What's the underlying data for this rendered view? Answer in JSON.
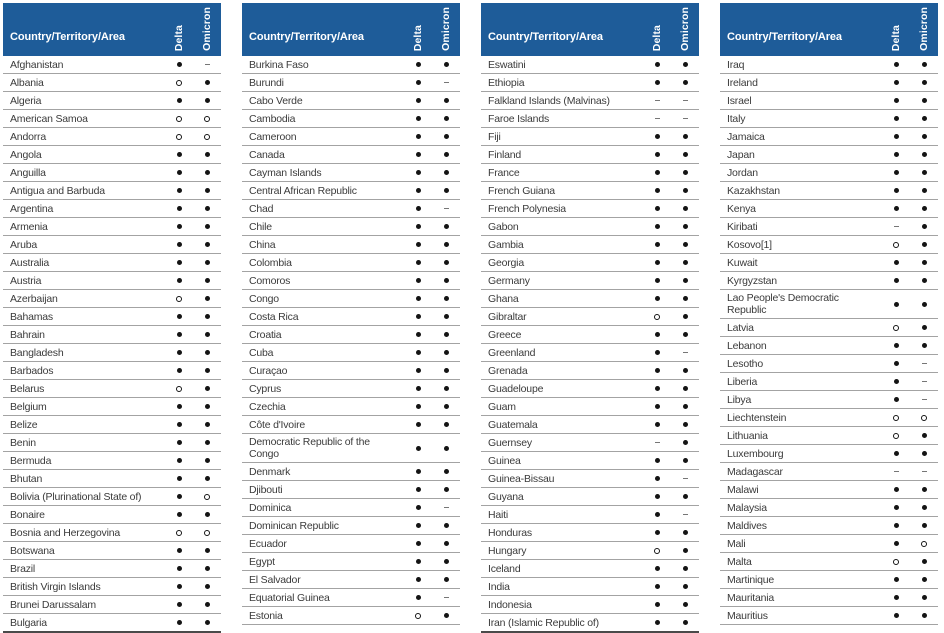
{
  "header": {
    "country_label": "Country/Territory/Area",
    "delta_label": "Delta",
    "omicron_label": "Omicron"
  },
  "colors": {
    "header_bg": "#1e5c99",
    "header_text": "#ffffff",
    "row_divider": "#a3a3a3",
    "body_text": "#3b3b3b",
    "marker": "#141414"
  },
  "marker_legend": {
    "filled": "●",
    "open": "○",
    "dash": "-"
  },
  "tables": [
    {
      "rows": [
        {
          "name": "Afghanistan",
          "delta": "filled",
          "omicron": "dash"
        },
        {
          "name": "Albania",
          "delta": "open",
          "omicron": "filled"
        },
        {
          "name": "Algeria",
          "delta": "filled",
          "omicron": "filled"
        },
        {
          "name": "American Samoa",
          "delta": "open",
          "omicron": "open"
        },
        {
          "name": "Andorra",
          "delta": "open",
          "omicron": "open"
        },
        {
          "name": "Angola",
          "delta": "filled",
          "omicron": "filled"
        },
        {
          "name": "Anguilla",
          "delta": "filled",
          "omicron": "filled"
        },
        {
          "name": "Antigua and Barbuda",
          "delta": "filled",
          "omicron": "filled"
        },
        {
          "name": "Argentina",
          "delta": "filled",
          "omicron": "filled"
        },
        {
          "name": "Armenia",
          "delta": "filled",
          "omicron": "filled"
        },
        {
          "name": "Aruba",
          "delta": "filled",
          "omicron": "filled"
        },
        {
          "name": "Australia",
          "delta": "filled",
          "omicron": "filled"
        },
        {
          "name": "Austria",
          "delta": "filled",
          "omicron": "filled"
        },
        {
          "name": "Azerbaijan",
          "delta": "open",
          "omicron": "filled"
        },
        {
          "name": "Bahamas",
          "delta": "filled",
          "omicron": "filled"
        },
        {
          "name": "Bahrain",
          "delta": "filled",
          "omicron": "filled"
        },
        {
          "name": "Bangladesh",
          "delta": "filled",
          "omicron": "filled"
        },
        {
          "name": "Barbados",
          "delta": "filled",
          "omicron": "filled"
        },
        {
          "name": "Belarus",
          "delta": "open",
          "omicron": "filled"
        },
        {
          "name": "Belgium",
          "delta": "filled",
          "omicron": "filled"
        },
        {
          "name": "Belize",
          "delta": "filled",
          "omicron": "filled"
        },
        {
          "name": "Benin",
          "delta": "filled",
          "omicron": "filled"
        },
        {
          "name": "Bermuda",
          "delta": "filled",
          "omicron": "filled"
        },
        {
          "name": "Bhutan",
          "delta": "filled",
          "omicron": "filled"
        },
        {
          "name": "Bolivia (Plurinational State of)",
          "delta": "filled",
          "omicron": "open"
        },
        {
          "name": "Bonaire",
          "delta": "filled",
          "omicron": "filled"
        },
        {
          "name": "Bosnia and Herzegovina",
          "delta": "open",
          "omicron": "open"
        },
        {
          "name": "Botswana",
          "delta": "filled",
          "omicron": "filled"
        },
        {
          "name": "Brazil",
          "delta": "filled",
          "omicron": "filled"
        },
        {
          "name": "British Virgin Islands",
          "delta": "filled",
          "omicron": "filled"
        },
        {
          "name": "Brunei Darussalam",
          "delta": "filled",
          "omicron": "filled"
        },
        {
          "name": "Bulgaria",
          "delta": "filled",
          "omicron": "filled"
        }
      ]
    },
    {
      "rows": [
        {
          "name": "Burkina Faso",
          "delta": "filled",
          "omicron": "filled"
        },
        {
          "name": "Burundi",
          "delta": "filled",
          "omicron": "dash"
        },
        {
          "name": "Cabo Verde",
          "delta": "filled",
          "omicron": "filled"
        },
        {
          "name": "Cambodia",
          "delta": "filled",
          "omicron": "filled"
        },
        {
          "name": "Cameroon",
          "delta": "filled",
          "omicron": "filled"
        },
        {
          "name": "Canada",
          "delta": "filled",
          "omicron": "filled"
        },
        {
          "name": "Cayman Islands",
          "delta": "filled",
          "omicron": "filled"
        },
        {
          "name": "Central African Republic",
          "delta": "filled",
          "omicron": "filled"
        },
        {
          "name": "Chad",
          "delta": "filled",
          "omicron": "dash"
        },
        {
          "name": "Chile",
          "delta": "filled",
          "omicron": "filled"
        },
        {
          "name": "China",
          "delta": "filled",
          "omicron": "filled"
        },
        {
          "name": "Colombia",
          "delta": "filled",
          "omicron": "filled"
        },
        {
          "name": "Comoros",
          "delta": "filled",
          "omicron": "filled"
        },
        {
          "name": "Congo",
          "delta": "filled",
          "omicron": "filled"
        },
        {
          "name": "Costa Rica",
          "delta": "filled",
          "omicron": "filled"
        },
        {
          "name": "Croatia",
          "delta": "filled",
          "omicron": "filled"
        },
        {
          "name": "Cuba",
          "delta": "filled",
          "omicron": "filled"
        },
        {
          "name": "Curaçao",
          "delta": "filled",
          "omicron": "filled"
        },
        {
          "name": "Cyprus",
          "delta": "filled",
          "omicron": "filled"
        },
        {
          "name": "Czechia",
          "delta": "filled",
          "omicron": "filled"
        },
        {
          "name": "Côte d'Ivoire",
          "delta": "filled",
          "omicron": "filled"
        },
        {
          "name": "Democratic Republic of the\nCongo",
          "delta": "filled",
          "omicron": "filled"
        },
        {
          "name": "Denmark",
          "delta": "filled",
          "omicron": "filled"
        },
        {
          "name": "Djibouti",
          "delta": "filled",
          "omicron": "filled"
        },
        {
          "name": "Dominica",
          "delta": "filled",
          "omicron": "dash"
        },
        {
          "name": "Dominican Republic",
          "delta": "filled",
          "omicron": "filled"
        },
        {
          "name": "Ecuador",
          "delta": "filled",
          "omicron": "filled"
        },
        {
          "name": "Egypt",
          "delta": "filled",
          "omicron": "filled"
        },
        {
          "name": "El Salvador",
          "delta": "filled",
          "omicron": "filled"
        },
        {
          "name": "Equatorial Guinea",
          "delta": "filled",
          "omicron": "dash"
        },
        {
          "name": "Estonia",
          "delta": "open",
          "omicron": "filled"
        }
      ]
    },
    {
      "rows": [
        {
          "name": "Eswatini",
          "delta": "filled",
          "omicron": "filled"
        },
        {
          "name": "Ethiopia",
          "delta": "filled",
          "omicron": "filled"
        },
        {
          "name": "Falkland Islands (Malvinas)",
          "delta": "dash",
          "omicron": "dash"
        },
        {
          "name": "Faroe Islands",
          "delta": "dash",
          "omicron": "dash"
        },
        {
          "name": "Fiji",
          "delta": "filled",
          "omicron": "filled"
        },
        {
          "name": "Finland",
          "delta": "filled",
          "omicron": "filled"
        },
        {
          "name": "France",
          "delta": "filled",
          "omicron": "filled"
        },
        {
          "name": "French Guiana",
          "delta": "filled",
          "omicron": "filled"
        },
        {
          "name": "French Polynesia",
          "delta": "filled",
          "omicron": "filled"
        },
        {
          "name": "Gabon",
          "delta": "filled",
          "omicron": "filled"
        },
        {
          "name": "Gambia",
          "delta": "filled",
          "omicron": "filled"
        },
        {
          "name": "Georgia",
          "delta": "filled",
          "omicron": "filled"
        },
        {
          "name": "Germany",
          "delta": "filled",
          "omicron": "filled"
        },
        {
          "name": "Ghana",
          "delta": "filled",
          "omicron": "filled"
        },
        {
          "name": "Gibraltar",
          "delta": "open",
          "omicron": "filled"
        },
        {
          "name": "Greece",
          "delta": "filled",
          "omicron": "filled"
        },
        {
          "name": "Greenland",
          "delta": "filled",
          "omicron": "dash"
        },
        {
          "name": "Grenada",
          "delta": "filled",
          "omicron": "filled"
        },
        {
          "name": "Guadeloupe",
          "delta": "filled",
          "omicron": "filled"
        },
        {
          "name": "Guam",
          "delta": "filled",
          "omicron": "filled"
        },
        {
          "name": "Guatemala",
          "delta": "filled",
          "omicron": "filled"
        },
        {
          "name": "Guernsey",
          "delta": "dash",
          "omicron": "filled"
        },
        {
          "name": "Guinea",
          "delta": "filled",
          "omicron": "filled"
        },
        {
          "name": "Guinea-Bissau",
          "delta": "filled",
          "omicron": "dash"
        },
        {
          "name": "Guyana",
          "delta": "filled",
          "omicron": "filled"
        },
        {
          "name": "Haiti",
          "delta": "filled",
          "omicron": "dash"
        },
        {
          "name": "Honduras",
          "delta": "filled",
          "omicron": "filled"
        },
        {
          "name": "Hungary",
          "delta": "open",
          "omicron": "filled"
        },
        {
          "name": "Iceland",
          "delta": "filled",
          "omicron": "filled"
        },
        {
          "name": "India",
          "delta": "filled",
          "omicron": "filled"
        },
        {
          "name": "Indonesia",
          "delta": "filled",
          "omicron": "filled"
        },
        {
          "name": "Iran (Islamic Republic of)",
          "delta": "filled",
          "omicron": "filled"
        }
      ]
    },
    {
      "rows": [
        {
          "name": "Iraq",
          "delta": "filled",
          "omicron": "filled"
        },
        {
          "name": "Ireland",
          "delta": "filled",
          "omicron": "filled"
        },
        {
          "name": "Israel",
          "delta": "filled",
          "omicron": "filled"
        },
        {
          "name": "Italy",
          "delta": "filled",
          "omicron": "filled"
        },
        {
          "name": "Jamaica",
          "delta": "filled",
          "omicron": "filled"
        },
        {
          "name": "Japan",
          "delta": "filled",
          "omicron": "filled"
        },
        {
          "name": "Jordan",
          "delta": "filled",
          "omicron": "filled"
        },
        {
          "name": "Kazakhstan",
          "delta": "filled",
          "omicron": "filled"
        },
        {
          "name": "Kenya",
          "delta": "filled",
          "omicron": "filled"
        },
        {
          "name": "Kiribati",
          "delta": "dash",
          "omicron": "filled"
        },
        {
          "name": "Kosovo[1]",
          "delta": "open",
          "omicron": "filled"
        },
        {
          "name": "Kuwait",
          "delta": "filled",
          "omicron": "filled"
        },
        {
          "name": "Kyrgyzstan",
          "delta": "filled",
          "omicron": "filled"
        },
        {
          "name": "Lao People's Democratic\nRepublic",
          "delta": "filled",
          "omicron": "filled"
        },
        {
          "name": "Latvia",
          "delta": "open",
          "omicron": "filled"
        },
        {
          "name": "Lebanon",
          "delta": "filled",
          "omicron": "filled"
        },
        {
          "name": "Lesotho",
          "delta": "filled",
          "omicron": "dash"
        },
        {
          "name": "Liberia",
          "delta": "filled",
          "omicron": "dash"
        },
        {
          "name": "Libya",
          "delta": "filled",
          "omicron": "dash"
        },
        {
          "name": "Liechtenstein",
          "delta": "open",
          "omicron": "open"
        },
        {
          "name": "Lithuania",
          "delta": "open",
          "omicron": "filled"
        },
        {
          "name": "Luxembourg",
          "delta": "filled",
          "omicron": "filled"
        },
        {
          "name": "Madagascar",
          "delta": "dash",
          "omicron": "dash"
        },
        {
          "name": "Malawi",
          "delta": "filled",
          "omicron": "filled"
        },
        {
          "name": "Malaysia",
          "delta": "filled",
          "omicron": "filled"
        },
        {
          "name": "Maldives",
          "delta": "filled",
          "omicron": "filled"
        },
        {
          "name": "Mali",
          "delta": "filled",
          "omicron": "open"
        },
        {
          "name": "Malta",
          "delta": "open",
          "omicron": "filled"
        },
        {
          "name": "Martinique",
          "delta": "filled",
          "omicron": "filled"
        },
        {
          "name": "Mauritania",
          "delta": "filled",
          "omicron": "filled"
        },
        {
          "name": "Mauritius",
          "delta": "filled",
          "omicron": "filled"
        }
      ]
    }
  ]
}
